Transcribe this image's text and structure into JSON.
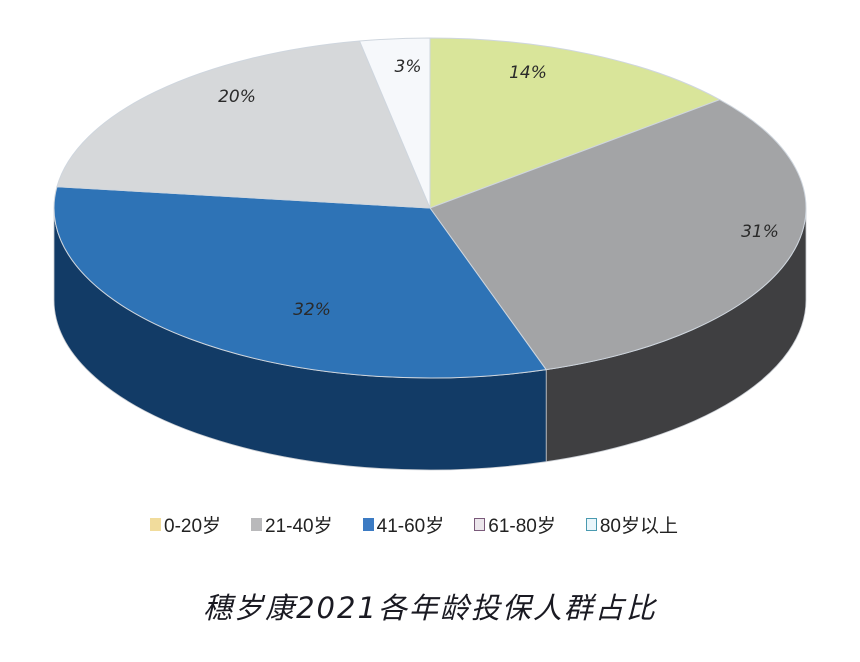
{
  "chart_data": {
    "type": "pie",
    "style": "3d",
    "title": "穗岁康2021各年龄投保人群占比",
    "categories": [
      "0-20岁",
      "21-40岁",
      "41-60岁",
      "61-80岁",
      "80岁以上"
    ],
    "values": [
      14,
      31,
      32,
      20,
      3
    ],
    "value_labels": [
      "14%",
      "31%",
      "32%",
      "20%",
      "3%"
    ],
    "unit": "%",
    "colors": [
      "#d9e59a",
      "#a3a4a6",
      "#2e73b6",
      "#d6d8da",
      "#f6f8fb"
    ],
    "side_colors": [
      "#b8c47a",
      "#3f3f41",
      "#123b66",
      "#a9abad",
      "#d0d4d8"
    ],
    "start_angle": "12 o'clock",
    "direction": "clockwise",
    "legend_position": "bottom"
  },
  "legend": {
    "items": [
      {
        "label": "0-20岁",
        "color": "#f1dc9c"
      },
      {
        "label": "21-40岁",
        "color": "#b9b9bb"
      },
      {
        "label": "41-60岁",
        "color": "#3c7bc3"
      },
      {
        "label": "61-80岁",
        "color": "#ece6ec"
      },
      {
        "label": "80岁以上",
        "color": "#eaf6fb"
      }
    ]
  },
  "title": "穗岁康2021各年龄投保人群占比"
}
